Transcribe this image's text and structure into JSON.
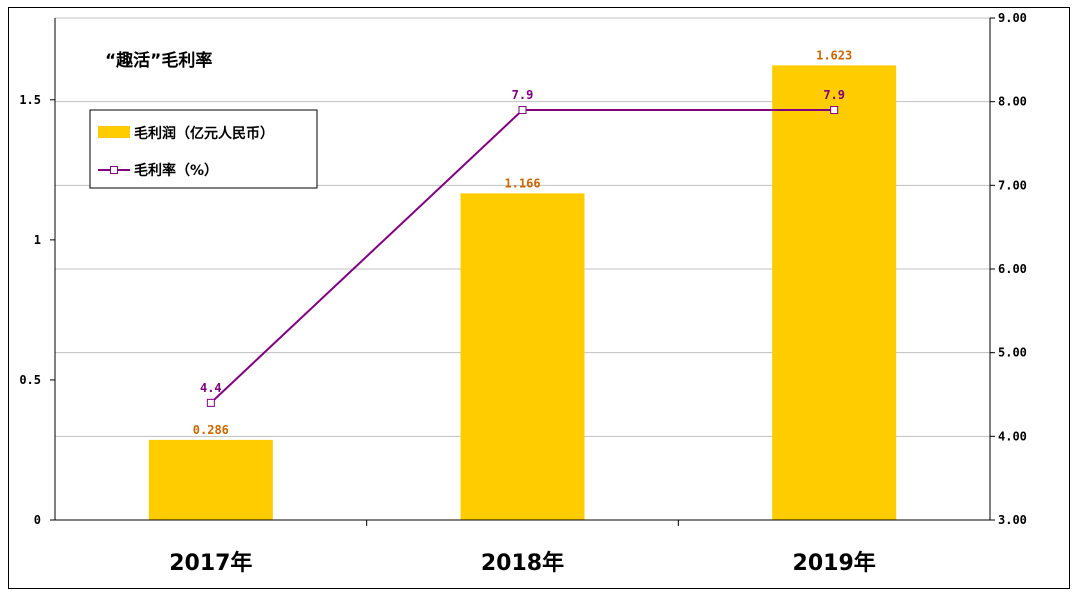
{
  "chart_data": {
    "type": "bar+line",
    "title": "“趣活”毛利率",
    "categories": [
      "2017年",
      "2018年",
      "2019年"
    ],
    "series": [
      {
        "name": "毛利润（亿元人民币）",
        "type": "bar",
        "axis": "left",
        "values": [
          0.286,
          1.166,
          1.623
        ],
        "labels": [
          "0.286",
          "1.166",
          "1.623"
        ]
      },
      {
        "name": "毛利率（%）",
        "type": "line",
        "axis": "right",
        "values": [
          4.4,
          7.9,
          7.9
        ],
        "labels": [
          "4.4",
          "7.9",
          "7.9"
        ]
      }
    ],
    "left_axis": {
      "ylim": [
        0,
        1.792
      ],
      "ticks": [
        0,
        0.5,
        1,
        1.5
      ],
      "tick_labels": [
        "0",
        "0.5",
        "1",
        "1.5"
      ]
    },
    "right_axis": {
      "ylim": [
        3,
        9
      ],
      "ticks": [
        3,
        4,
        5,
        6,
        7,
        8,
        9
      ],
      "tick_labels": [
        "3.00",
        "4.00",
        "5.00",
        "6.00",
        "7.00",
        "8.00",
        "9.00"
      ]
    },
    "grid": true,
    "legend_position": "top-left",
    "colors": {
      "bar": "#FFCC00",
      "bar_label": "#CC6600",
      "line": "#800080",
      "line_label": "#800080",
      "marker_fill": "#ffffff",
      "grid": "#c0c0c0"
    }
  }
}
